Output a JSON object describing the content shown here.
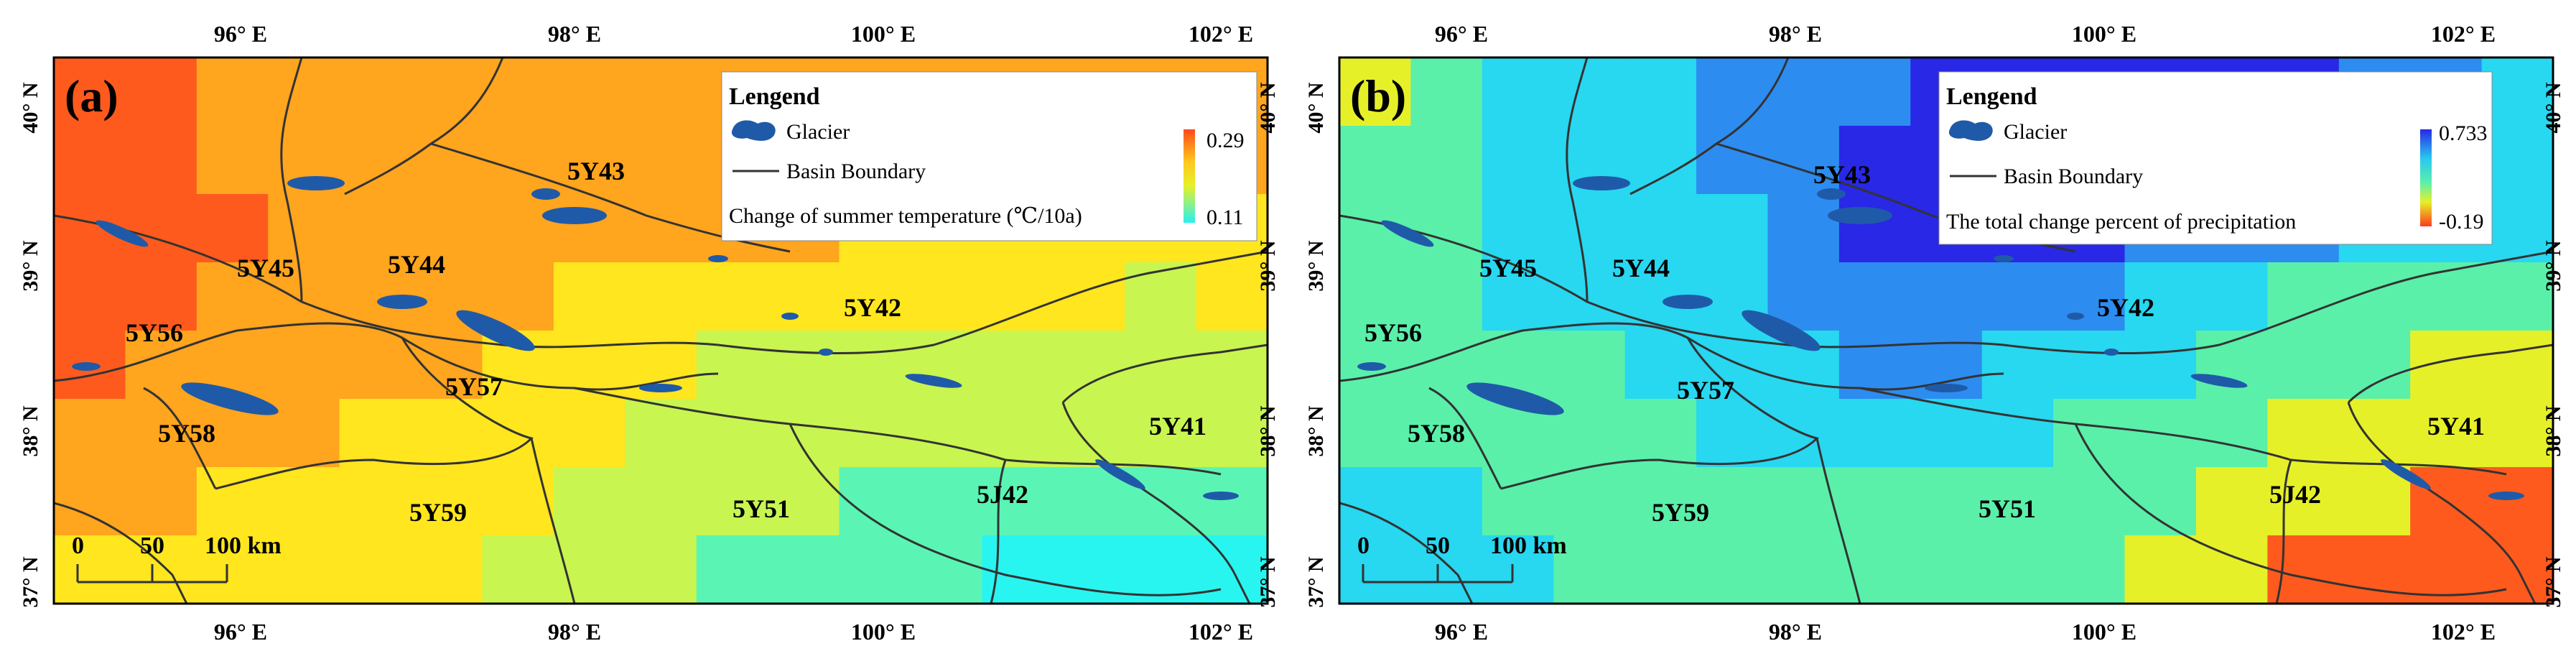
{
  "panels": [
    {
      "id": "a",
      "letter": "(a)",
      "legend": {
        "title": "Lengend",
        "glacier_label": "Glacier",
        "boundary_label": "Basin Boundary",
        "colorbar_label": "Change of summer temperature (℃/10a)",
        "max": "0.29",
        "min": "0.11",
        "colors": [
          "#ff5a1e",
          "#ffa51e",
          "#ffe61e",
          "#c8f550",
          "#5af5b4",
          "#28f5f0"
        ]
      },
      "basins": [
        "5Y43",
        "5Y45",
        "5Y44",
        "5Y56",
        "5Y42",
        "5Y57",
        "5Y58",
        "5Y41",
        "5Y59",
        "5Y51",
        "5J42"
      ]
    },
    {
      "id": "b",
      "letter": "(b)",
      "legend": {
        "title": "Lengend",
        "glacier_label": "Glacier",
        "boundary_label": "Basin Boundary",
        "colorbar_label": "The total change percent of  precipitation",
        "max": "0.733",
        "min": "-0.19",
        "colors": [
          "#2828e6",
          "#2d8cf0",
          "#28d7f0",
          "#5af0aa",
          "#e6f028",
          "#ff5a1e"
        ]
      },
      "basins": [
        "5Y43",
        "5Y45",
        "5Y44",
        "5Y56",
        "5Y42",
        "5Y57",
        "5Y58",
        "5Y41",
        "5Y59",
        "5Y51",
        "5J42"
      ]
    }
  ],
  "axes": {
    "lon_labels": [
      "96° E",
      "98° E",
      "100° E",
      "102° E"
    ],
    "lat_labels": [
      "40° N",
      "39° N",
      "38° N",
      "37° N"
    ]
  },
  "scale_bar": {
    "ticks": [
      "0",
      "50",
      "100 km"
    ]
  },
  "colors": {
    "glacier": "#1f5aa8",
    "boundary": "#333333",
    "frame": "#000000"
  }
}
